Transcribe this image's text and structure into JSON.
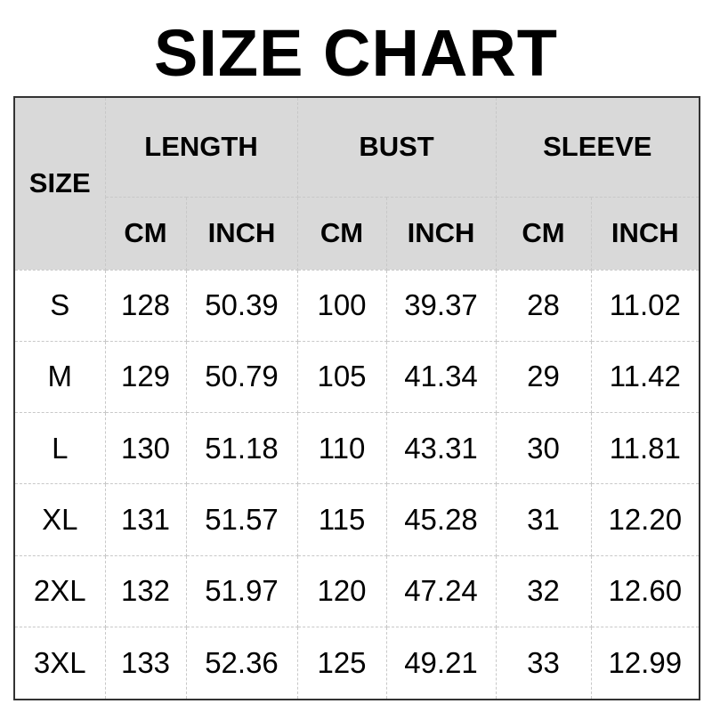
{
  "title": "SIZE CHART",
  "header": {
    "size": "SIZE",
    "groups": [
      "LENGTH",
      "BUST",
      "SLEEVE"
    ],
    "units": [
      "CM",
      "INCH",
      "CM",
      "INCH",
      "CM",
      "INCH"
    ]
  },
  "header_bg": "#d9d9d9",
  "rows": [
    [
      "S",
      "128",
      "50.39",
      "100",
      "39.37",
      "28",
      "11.02"
    ],
    [
      "M",
      "129",
      "50.79",
      "105",
      "41.34",
      "29",
      "11.42"
    ],
    [
      "L",
      "130",
      "51.18",
      "110",
      "43.31",
      "30",
      "11.81"
    ],
    [
      "XL",
      "131",
      "51.57",
      "115",
      "45.28",
      "31",
      "12.20"
    ],
    [
      "2XL",
      "132",
      "51.97",
      "120",
      "47.24",
      "32",
      "12.60"
    ],
    [
      "3XL",
      "133",
      "52.36",
      "125",
      "49.21",
      "33",
      "12.99"
    ]
  ]
}
